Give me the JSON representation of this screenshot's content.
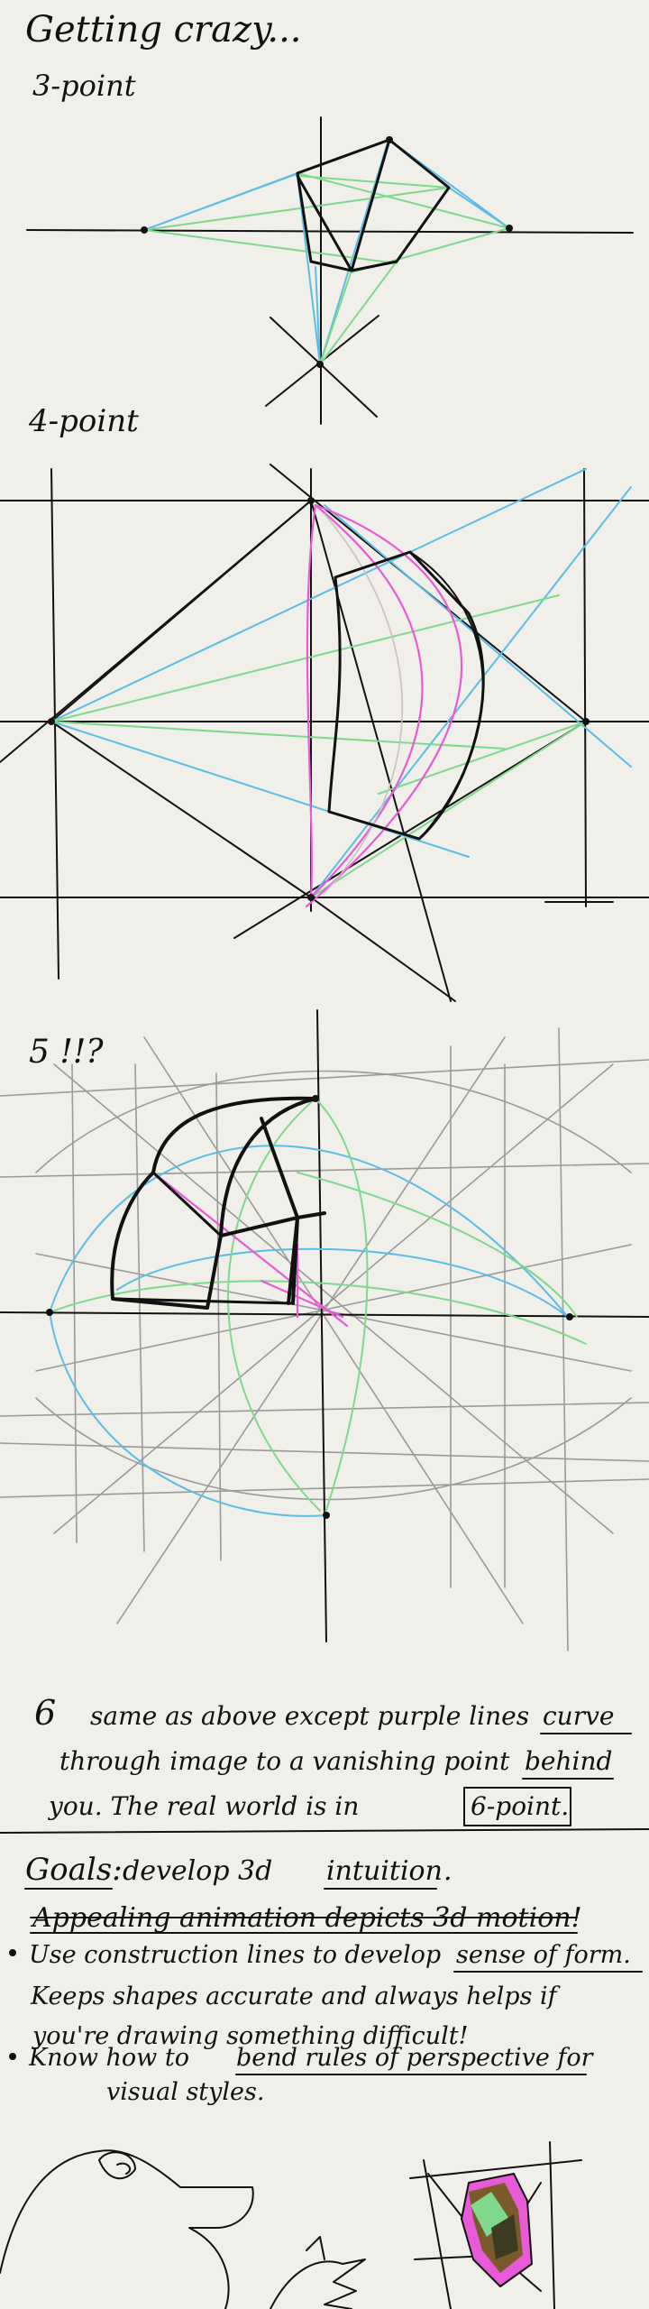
{
  "title": "Getting crazy...",
  "sections": {
    "three_point": {
      "label": "3-point"
    },
    "four_point": {
      "label": "4-point"
    },
    "five_point": {
      "label": "5 !!?"
    }
  },
  "six_point_note": {
    "number": "6",
    "line1_a": "same as above except purple lines",
    "line1_b": "curve",
    "line2_a": "through image to a vanishing point",
    "line2_b": "behind",
    "line3_a": "you. The real world is in",
    "line3_b": "6-point."
  },
  "goals": {
    "label": "Goals:",
    "text_a": "develop 3d",
    "text_b": "intuition",
    "text_c": ".",
    "struck": "Appealing animation depicts 3d motion!",
    "bullet1_l1_a": "Use construction lines to develop",
    "bullet1_l1_b": "sense of form.",
    "bullet1_l2": "Keeps shapes accurate and always helps if",
    "bullet1_l3": "you're drawing something difficult!",
    "bullet2_l1_a": "Know how to",
    "bullet2_l1_b": "bend rules of perspective for",
    "bullet2_l2": "visual styles."
  },
  "colors": {
    "background": "#f0efea",
    "ink": "#111111",
    "blue": "#5bbde6",
    "green": "#7fd88c",
    "pink": "#e85ad6",
    "grey": "#9a9a9a"
  },
  "icons": [
    "bullet-dot",
    "dog-sketch",
    "colored-box-sketch"
  ]
}
